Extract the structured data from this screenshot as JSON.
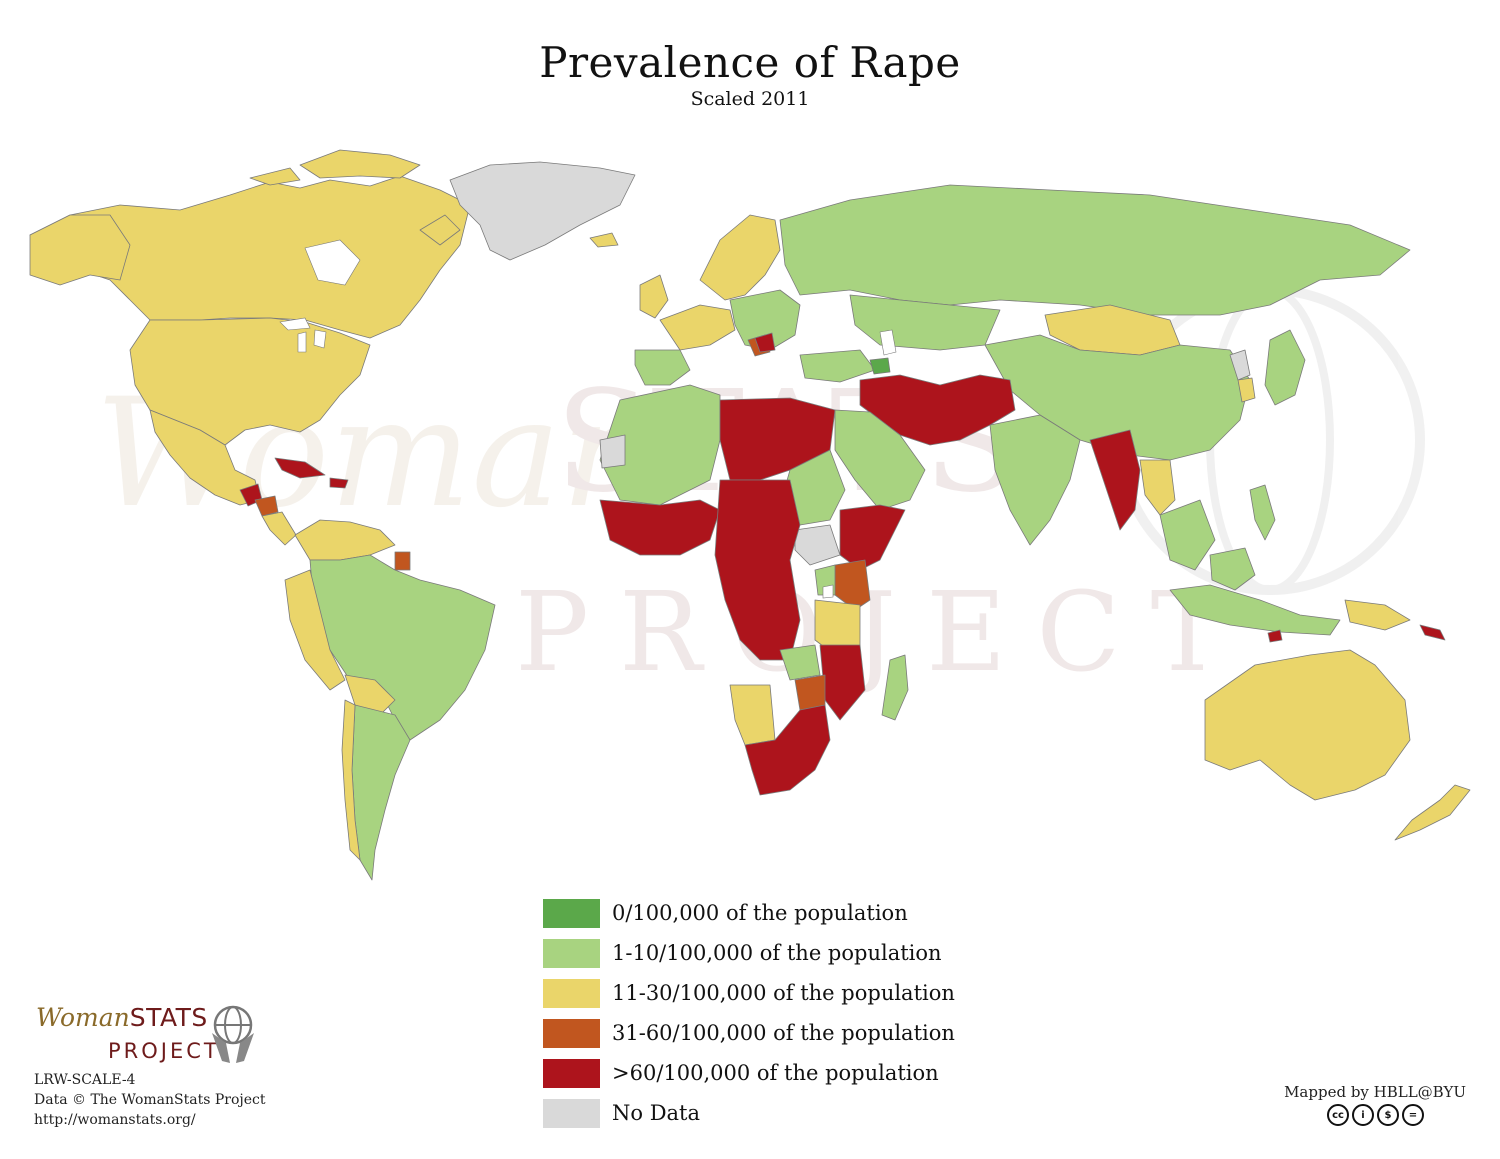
{
  "title": "Prevalence of Rape",
  "subtitle": "Scaled 2011",
  "watermark": {
    "word1": "Woman",
    "word2": "STATS",
    "word3": "PROJECT"
  },
  "colors": {
    "zero": "#5ba84a",
    "low": "#a8d380",
    "mid": "#ead56a",
    "high": "#c1561f",
    "very_high": "#ad141c",
    "no_data": "#d9d9d9",
    "border": "#7a7a7a"
  },
  "legend": [
    {
      "label": "0/100,000 of the population",
      "color": "#5ba84a"
    },
    {
      "label": "1-10/100,000 of the population",
      "color": "#a8d380"
    },
    {
      "label": "11-30/100,000 of the population",
      "color": "#ead56a"
    },
    {
      "label": "31-60/100,000 of the population",
      "color": "#c1561f"
    },
    {
      "label": ">60/100,000 of the population",
      "color": "#ad141c"
    },
    {
      "label": "No Data",
      "color": "#d9d9d9"
    }
  ],
  "logo": {
    "woman": "Woman",
    "stats": "STATS",
    "project": "PROJECT"
  },
  "credits": {
    "code": "LRW-SCALE-4",
    "data": "Data © The WomanStats Project",
    "url": "http://womanstats.org/"
  },
  "mapped_by": "Mapped by HBLL@BYU",
  "license_icons": [
    "cc",
    "by",
    "nc",
    "nd"
  ],
  "license_icon_labels": [
    "cc",
    "i",
    "$",
    "="
  ]
}
